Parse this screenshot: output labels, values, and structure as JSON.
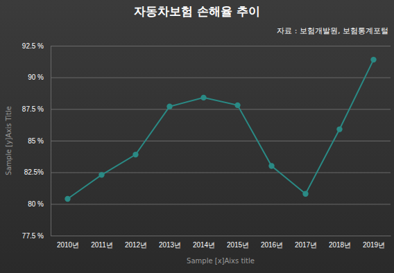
{
  "chart_data": {
    "type": "line",
    "title": "자동차보험 손해율 추이",
    "subtitle": "자료 : 보험개발원, 보험통계포털",
    "x_label": "Sample [x]Aixs title",
    "y_label": "Sample [y]Axis Title",
    "categories": [
      "2010년",
      "2011년",
      "2012년",
      "2013년",
      "2014년",
      "2015년",
      "2016년",
      "2017년",
      "2018년",
      "2019년"
    ],
    "values": [
      80.4,
      82.3,
      83.9,
      87.7,
      88.4,
      87.8,
      83.0,
      80.8,
      85.9,
      91.4
    ],
    "color": "#2a8a85",
    "marker": "circle",
    "grid": true,
    "ylim": [
      77.5,
      92.5
    ],
    "yticks": [
      {
        "value": 77.5,
        "label": "77.5 %"
      },
      {
        "value": 80,
        "label": "80 %"
      },
      {
        "value": 82.5,
        "label": "82.5%"
      },
      {
        "value": 85,
        "label": "85 %"
      },
      {
        "value": 87.5,
        "label": "87.5 %"
      },
      {
        "value": 90,
        "label": "90 %"
      },
      {
        "value": 92.5,
        "label": "92.5 %"
      }
    ]
  }
}
